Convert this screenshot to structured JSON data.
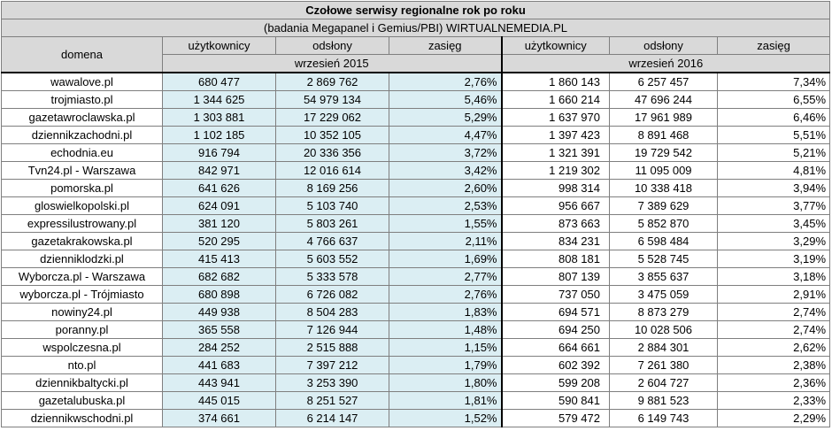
{
  "title": "Czołowe serwisy regionalne rok po roku",
  "subtitle": "(badania Megapanel i Gemius/PBI) WIRTUALNEMEDIA.PL",
  "headers": {
    "domain": "domena",
    "users": "użytkownicy",
    "views": "odsłony",
    "reach": "zasięg",
    "period_2015": "wrzesień 2015",
    "period_2016": "wrzesień 2016"
  },
  "colors": {
    "header_bg": "#d9d9d9",
    "band_2015": "#dbeef3"
  },
  "rows": [
    {
      "domain": "wawalove.pl",
      "u15": "680 477",
      "v15": "2 869 762",
      "r15": "2,76%",
      "u16": "1 860 143",
      "v16": "6 257 457",
      "r16": "7,34%"
    },
    {
      "domain": "trojmiasto.pl",
      "u15": "1 344 625",
      "v15": "54 979 134",
      "r15": "5,46%",
      "u16": "1 660 214",
      "v16": "47 696 244",
      "r16": "6,55%"
    },
    {
      "domain": "gazetawroclawska.pl",
      "u15": "1 303 881",
      "v15": "17 229 062",
      "r15": "5,29%",
      "u16": "1 637 970",
      "v16": "17 961 989",
      "r16": "6,46%"
    },
    {
      "domain": "dziennikzachodni.pl",
      "u15": "1 102 185",
      "v15": "10 352 105",
      "r15": "4,47%",
      "u16": "1 397 423",
      "v16": "8 891 468",
      "r16": "5,51%"
    },
    {
      "domain": "echodnia.eu",
      "u15": "916 794",
      "v15": "20 336 356",
      "r15": "3,72%",
      "u16": "1 321 391",
      "v16": "19 729 542",
      "r16": "5,21%"
    },
    {
      "domain": "Tvn24.pl - Warszawa",
      "u15": "842 971",
      "v15": "12 016 614",
      "r15": "3,42%",
      "u16": "1 219 302",
      "v16": "11 095 009",
      "r16": "4,81%"
    },
    {
      "domain": "pomorska.pl",
      "u15": "641 626",
      "v15": "8 169 256",
      "r15": "2,60%",
      "u16": "998 314",
      "v16": "10 338 418",
      "r16": "3,94%"
    },
    {
      "domain": "gloswielkopolski.pl",
      "u15": "624 091",
      "v15": "5 103 740",
      "r15": "2,53%",
      "u16": "956 667",
      "v16": "7 389 629",
      "r16": "3,77%"
    },
    {
      "domain": "expressilustrowany.pl",
      "u15": "381 120",
      "v15": "5 803 261",
      "r15": "1,55%",
      "u16": "873 663",
      "v16": "5 852 870",
      "r16": "3,45%"
    },
    {
      "domain": "gazetakrakowska.pl",
      "u15": "520 295",
      "v15": "4 766 637",
      "r15": "2,11%",
      "u16": "834 231",
      "v16": "6 598 484",
      "r16": "3,29%"
    },
    {
      "domain": "dzienniklodzki.pl",
      "u15": "415 413",
      "v15": "5 603 552",
      "r15": "1,69%",
      "u16": "808 181",
      "v16": "5 528 745",
      "r16": "3,19%"
    },
    {
      "domain": "Wyborcza.pl - Warszawa",
      "u15": "682 682",
      "v15": "5 333 578",
      "r15": "2,77%",
      "u16": "807 139",
      "v16": "3 855 637",
      "r16": "3,18%"
    },
    {
      "domain": "wyborcza.pl - Trójmiasto",
      "u15": "680 898",
      "v15": "6 726 082",
      "r15": "2,76%",
      "u16": "737 050",
      "v16": "3 475 059",
      "r16": "2,91%"
    },
    {
      "domain": "nowiny24.pl",
      "u15": "449 938",
      "v15": "8 504 283",
      "r15": "1,83%",
      "u16": "694 571",
      "v16": "8 873 279",
      "r16": "2,74%"
    },
    {
      "domain": "poranny.pl",
      "u15": "365 558",
      "v15": "7 126 944",
      "r15": "1,48%",
      "u16": "694 250",
      "v16": "10 028 506",
      "r16": "2,74%"
    },
    {
      "domain": "wspolczesna.pl",
      "u15": "284 252",
      "v15": "2 515 888",
      "r15": "1,15%",
      "u16": "664 661",
      "v16": "2 884 301",
      "r16": "2,62%"
    },
    {
      "domain": "nto.pl",
      "u15": "441 683",
      "v15": "7 397 212",
      "r15": "1,79%",
      "u16": "602 392",
      "v16": "7 261 380",
      "r16": "2,38%"
    },
    {
      "domain": "dziennikbaltycki.pl",
      "u15": "443 941",
      "v15": "3 253 390",
      "r15": "1,80%",
      "u16": "599 208",
      "v16": "2 604 727",
      "r16": "2,36%"
    },
    {
      "domain": "gazetalubuska.pl",
      "u15": "445 015",
      "v15": "8 251 527",
      "r15": "1,81%",
      "u16": "590 841",
      "v16": "9 881 523",
      "r16": "2,33%"
    },
    {
      "domain": "dziennikwschodni.pl",
      "u15": "374 661",
      "v15": "6 214 147",
      "r15": "1,52%",
      "u16": "579 472",
      "v16": "6 149 743",
      "r16": "2,29%"
    }
  ]
}
